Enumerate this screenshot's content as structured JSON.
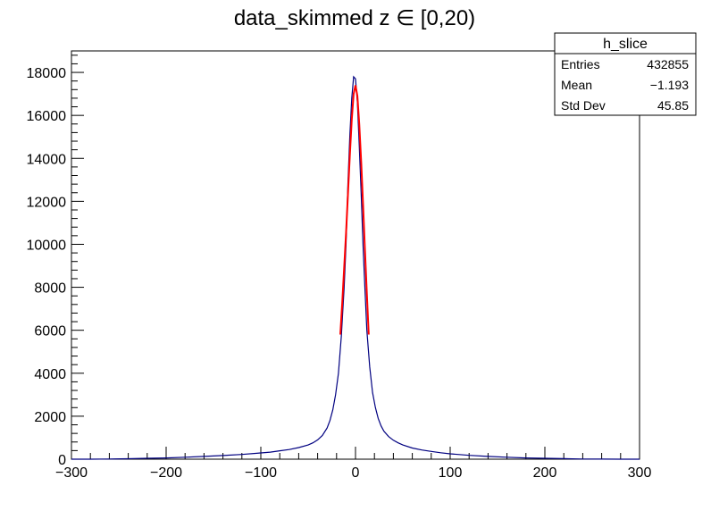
{
  "chart_data": {
    "type": "histogram",
    "title": "data_skimmed z  ∈ [0,20)",
    "xlabel": "",
    "ylabel": "",
    "xlim": [
      -300,
      300
    ],
    "ylim": [
      0,
      19000
    ],
    "x_ticks": [
      "−300",
      "−200",
      "−100",
      "0",
      "100",
      "200",
      "300"
    ],
    "x_tick_values": [
      -300,
      -200,
      -100,
      0,
      100,
      200,
      300
    ],
    "y_ticks": [
      "0",
      "2000",
      "4000",
      "6000",
      "8000",
      "10000",
      "12000",
      "14000",
      "16000",
      "18000"
    ],
    "y_tick_values": [
      0,
      2000,
      4000,
      6000,
      8000,
      10000,
      12000,
      14000,
      16000,
      18000
    ],
    "grid": false,
    "series": [
      {
        "color": "#000080",
        "x": [
          -300,
          -280,
          -260,
          -240,
          -220,
          -200,
          -180,
          -160,
          -140,
          -120,
          -100,
          -90,
          -80,
          -70,
          -60,
          -50,
          -45,
          -40,
          -35,
          -30,
          -27,
          -24,
          -21,
          -18,
          -15,
          -12,
          -10,
          -8,
          -6,
          -4,
          -2,
          0,
          2,
          4,
          6,
          8,
          10,
          12,
          15,
          18,
          21,
          24,
          27,
          30,
          35,
          40,
          45,
          50,
          60,
          70,
          80,
          90,
          100,
          120,
          140,
          160,
          180,
          200,
          220,
          240,
          260,
          280,
          300
        ],
        "y": [
          0,
          0,
          10,
          20,
          40,
          60,
          90,
          130,
          170,
          220,
          290,
          330,
          390,
          450,
          540,
          660,
          760,
          900,
          1100,
          1450,
          1800,
          2300,
          3000,
          4000,
          5700,
          8000,
          10000,
          12800,
          15000,
          16800,
          17800,
          17700,
          16600,
          14600,
          12300,
          9900,
          7900,
          6000,
          4300,
          3100,
          2400,
          1900,
          1550,
          1300,
          1050,
          880,
          760,
          660,
          520,
          430,
          360,
          300,
          250,
          180,
          130,
          90,
          60,
          40,
          25,
          10,
          5,
          0,
          0
        ]
      },
      {
        "color": "#ff0000",
        "x": [
          -16,
          -14,
          -12,
          -10,
          -8,
          -6,
          -4,
          -2,
          0,
          2,
          4,
          6,
          8,
          10,
          12,
          14
        ],
        "y": [
          5800,
          7300,
          8900,
          10500,
          12300,
          14100,
          15800,
          17000,
          17400,
          16900,
          15600,
          13800,
          11800,
          9700,
          7700,
          5800
        ]
      }
    ]
  },
  "stats_box": {
    "title": "h_slice",
    "rows": [
      {
        "label": "Entries",
        "value": "432855"
      },
      {
        "label": "Mean",
        "value": "−1.193"
      },
      {
        "label": "Std Dev",
        "value": "45.85"
      }
    ]
  }
}
